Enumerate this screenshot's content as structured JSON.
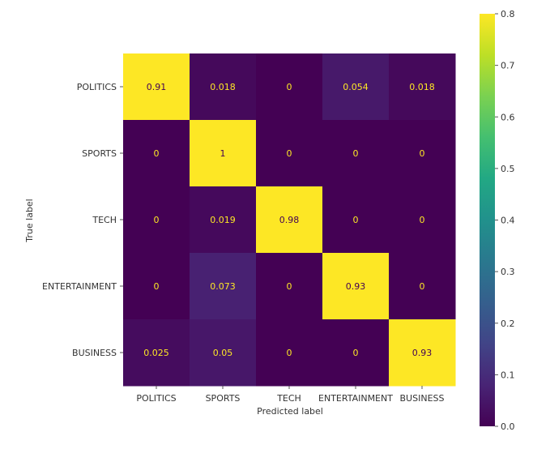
{
  "chart_data": {
    "type": "heatmap",
    "row_labels": [
      "POLITICS",
      "SPORTS",
      "TECH",
      "ENTERTAINMENT",
      "BUSINESS"
    ],
    "col_labels": [
      "POLITICS",
      "SPORTS",
      "TECH",
      "ENTERTAINMENT",
      "BUSINESS"
    ],
    "values": [
      [
        0.91,
        0.018,
        0,
        0.054,
        0.018
      ],
      [
        0,
        1,
        0,
        0,
        0
      ],
      [
        0,
        0.019,
        0.98,
        0,
        0
      ],
      [
        0,
        0.073,
        0,
        0.93,
        0
      ],
      [
        0.025,
        0.05,
        0,
        0,
        0.93
      ]
    ],
    "value_labels": [
      [
        "0.91",
        "0.018",
        "0",
        "0.054",
        "0.018"
      ],
      [
        "0",
        "1",
        "0",
        "0",
        "0"
      ],
      [
        "0",
        "0.019",
        "0.98",
        "0",
        "0"
      ],
      [
        "0",
        "0.073",
        "0",
        "0.93",
        "0"
      ],
      [
        "0.025",
        "0.05",
        "0",
        "0",
        "0.93"
      ]
    ],
    "xlabel": "Predicted label",
    "ylabel": "True label",
    "colorbar": {
      "min": 0,
      "max": 0.8,
      "ticks": [
        0,
        0.1,
        0.2,
        0.3,
        0.4,
        0.5,
        0.6,
        0.7,
        0.8
      ],
      "tick_labels": [
        "0.0",
        "0.1",
        "0.2",
        "0.3",
        "0.4",
        "0.5",
        "0.6",
        "0.7",
        "0.8"
      ]
    },
    "colormap": "viridis",
    "light_text_color": "#fde725",
    "dark_text_color": "#440154",
    "grid": false
  }
}
